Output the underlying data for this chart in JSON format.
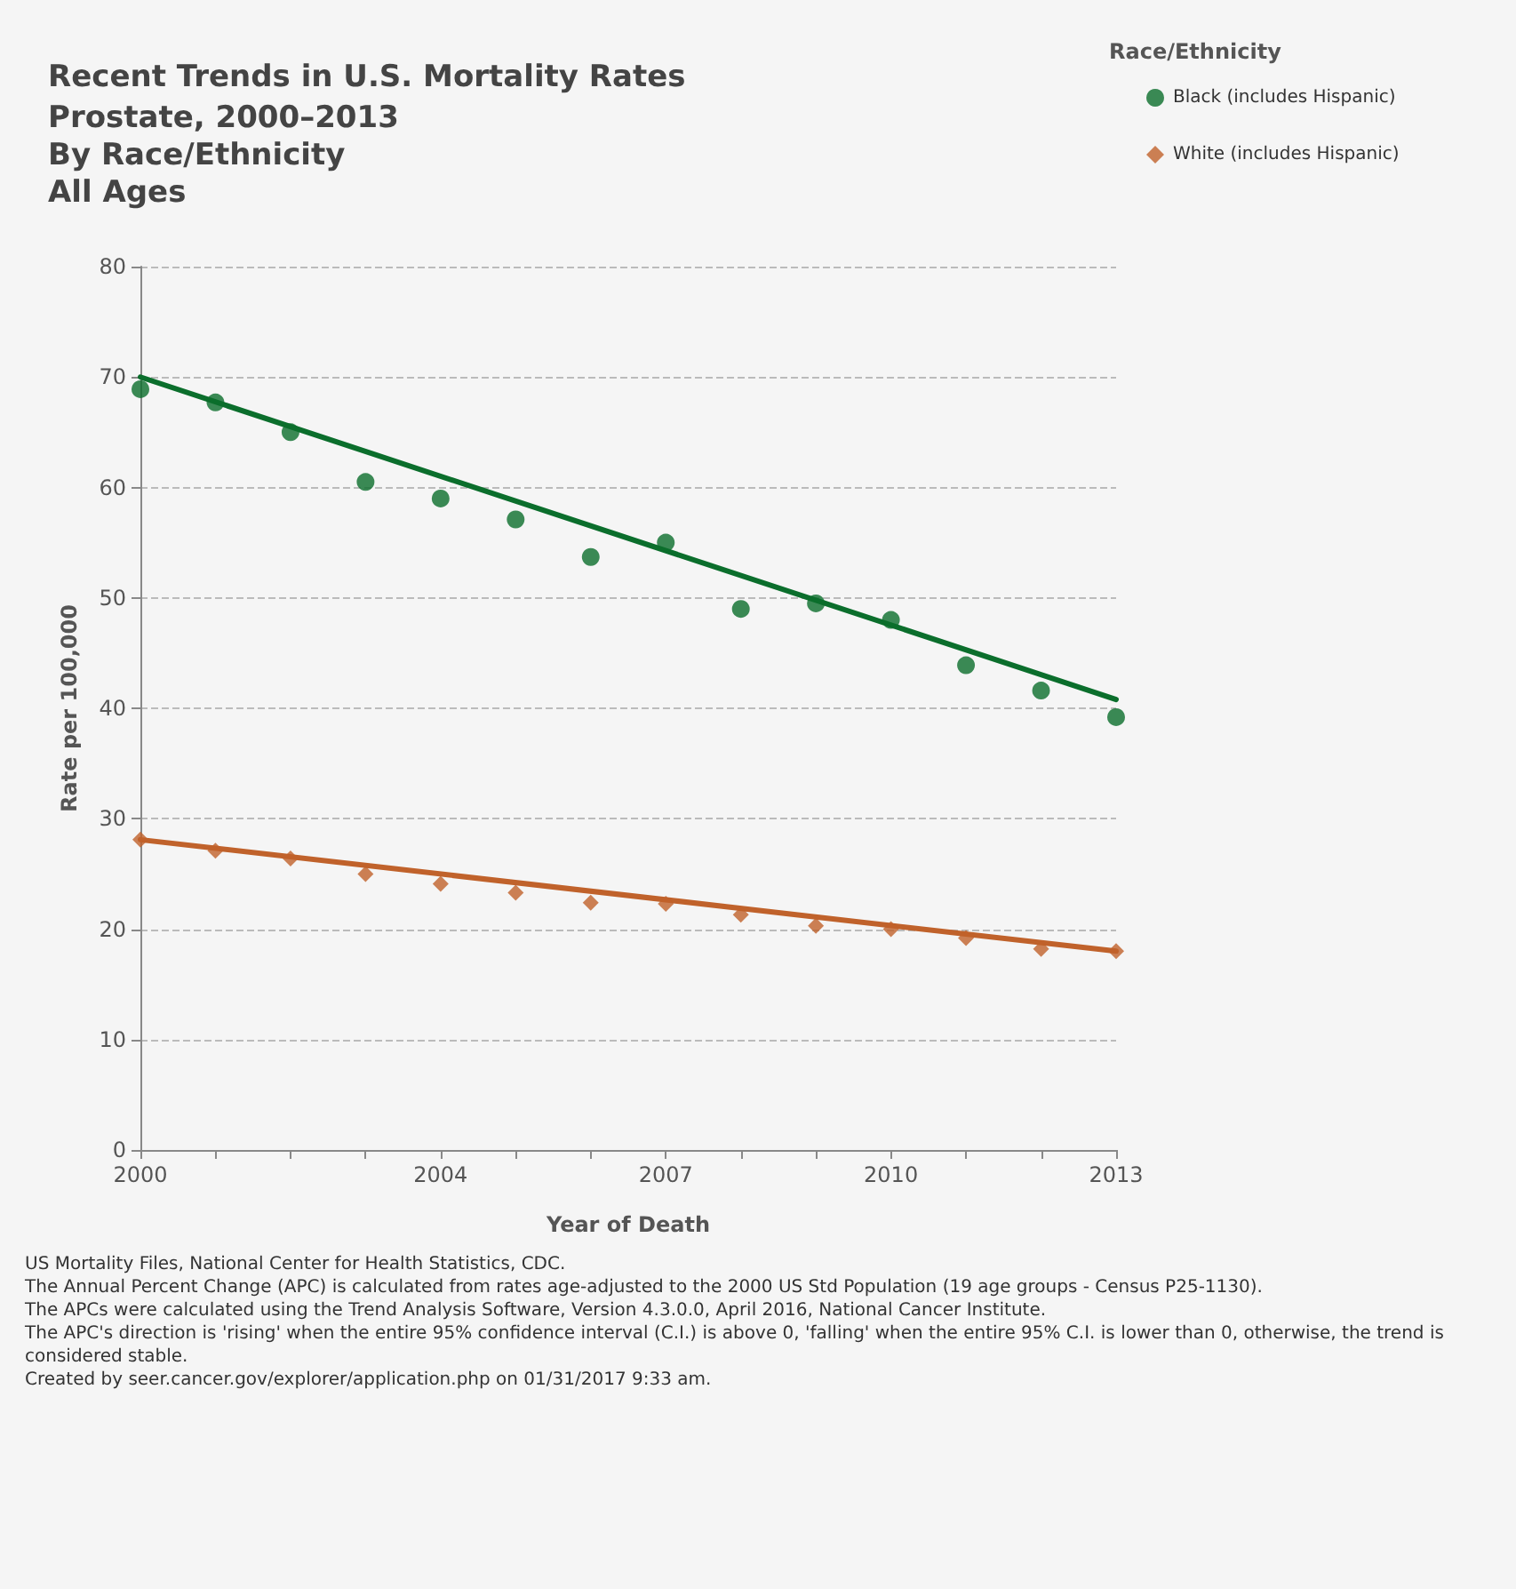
{
  "chart_data": {
    "type": "scatter",
    "title": "Recent Trends in U.S. Mortality Rates",
    "subtitle": "Prostate, 2000–2013\nBy Race/Ethnicity\nAll Ages",
    "xlabel": "Year of Death",
    "ylabel": "Rate per 100,000",
    "legend_title": "Race/Ethnicity",
    "x": [
      2000,
      2001,
      2002,
      2003,
      2004,
      2005,
      2006,
      2007,
      2008,
      2009,
      2010,
      2011,
      2012,
      2013
    ],
    "series": [
      {
        "name": "Black (includes Hispanic)",
        "color": "#0b6e2c",
        "marker": "circle",
        "values": [
          68.9,
          67.7,
          65.0,
          60.5,
          59.0,
          57.1,
          53.7,
          55.0,
          49.0,
          49.5,
          48.0,
          43.9,
          41.6,
          39.2
        ]
      },
      {
        "name": "White (includes Hispanic)",
        "color": "#c0622b",
        "marker": "diamond",
        "values": [
          28.1,
          27.1,
          26.4,
          25.0,
          24.1,
          23.3,
          22.4,
          22.3,
          21.3,
          20.3,
          20.0,
          19.2,
          18.2,
          18.0
        ]
      },
      {
        "type": "line",
        "color": "#0b6e2c",
        "marker": "none",
        "values": [
          70.0,
          null,
          null,
          null,
          null,
          null,
          null,
          null,
          null,
          null,
          null,
          null,
          null,
          40.8
        ]
      },
      {
        "type": "line",
        "color": "#c0622b",
        "marker": "none",
        "values": [
          28.1,
          null,
          null,
          null,
          null,
          null,
          null,
          null,
          null,
          null,
          null,
          null,
          null,
          18.0
        ]
      }
    ],
    "xlim": [
      2000,
      2013
    ],
    "xticks": [
      2000,
      {
        "value": 2001,
        "label": null
      },
      {
        "value": 2002,
        "label": null
      },
      {
        "value": 2003,
        "label": null
      },
      2004,
      {
        "value": 2005,
        "label": null
      },
      {
        "value": 2006,
        "label": null
      },
      2007,
      {
        "value": 2008,
        "label": null
      },
      {
        "value": 2009,
        "label": null
      },
      2010,
      {
        "value": 2011,
        "label": null
      },
      {
        "value": 2012,
        "label": null
      },
      2013
    ],
    "ylim": [
      0,
      80
    ],
    "yticks": [
      0,
      10,
      20,
      30,
      40,
      50,
      60,
      70,
      80
    ],
    "grid": "y",
    "legend": "top right",
    "line_style": "solid",
    "annotations": [
      "US Mortality Files, National Center for Health Statistics, CDC.",
      "The Annual Percent Change (APC) is calculated from rates age-adjusted to the 2000 US Std Population (19 age groups - Census P25-1130).",
      "The APCs were calculated using the Trend Analysis Software, Version 4.3.0.0, April 2016, National Cancer Institute.",
      "The APC's direction is 'rising' when the entire 95% confidence interval (C.I.) is above 0, 'falling' when the entire 95% C.I. is lower than 0, otherwise, the trend is considered stable.",
      "Created by seer.cancer.gov/explorer/application.php on 01/31/2017 9:33 am."
    ]
  }
}
